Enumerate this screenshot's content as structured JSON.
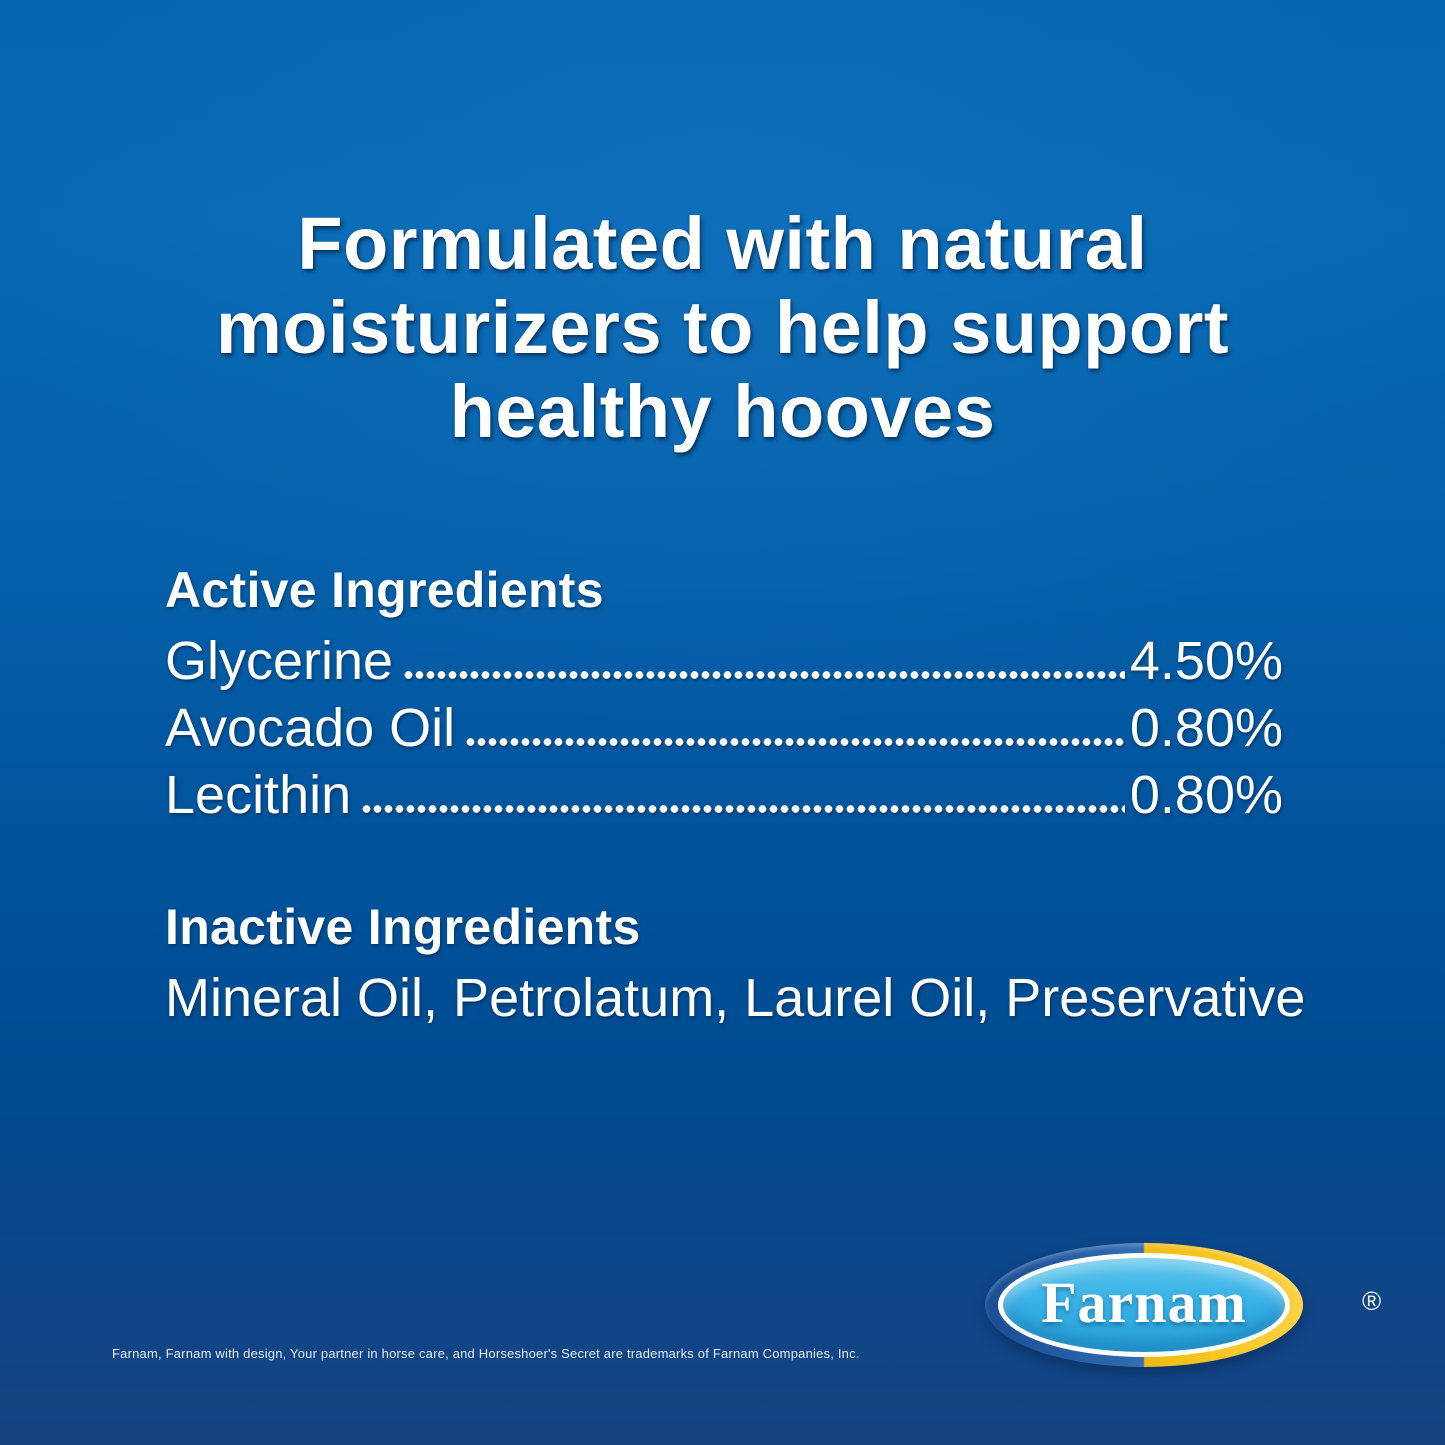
{
  "colors": {
    "bg_top": "#0769b4",
    "bg_bottom": "#15437f",
    "text": "#ffffff",
    "logo_outer_blue": "#2b67ac",
    "logo_outer_yellow": "#f7c51e",
    "logo_inner_blue": "#38b2e6",
    "logo_ring": "#ffffff"
  },
  "headline": {
    "full_text": "Formulated with natural moisturizers to help support healthy hooves",
    "lines": [
      "Formulated with natural",
      "moisturizers to help support",
      "healthy hooves"
    ]
  },
  "active_ingredients": {
    "heading": "Active Ingredients",
    "rows": [
      {
        "name": "Glycerine",
        "value": "4.50%"
      },
      {
        "name": "Avocado Oil",
        "value": "0.80%"
      },
      {
        "name": "Lecithin",
        "value": "0.80%"
      }
    ]
  },
  "inactive_ingredients": {
    "heading": "Inactive Ingredients",
    "items": "Mineral Oil, Petrolatum, Laurel Oil, Preservative"
  },
  "brand": {
    "name": "Farnam",
    "registered_mark": "®"
  },
  "legal": {
    "trademark_notice": "Farnam, Farnam with design, Your partner in horse care, and Horseshoer's Secret are trademarks of Farnam Companies, Inc."
  }
}
